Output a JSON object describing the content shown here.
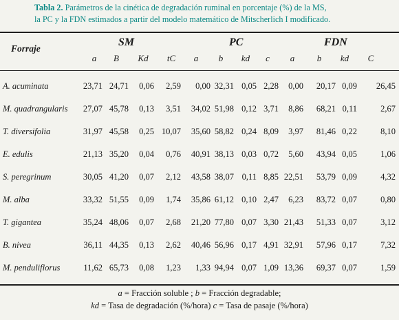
{
  "caption": {
    "label": "Tabla 2.",
    "text_line1": " Parámetros de la cinética de degradación ruminal en porcentaje (%) de la MS,",
    "text_line2": "la PC y la FDN estimados a partir del modelo matemático de Mitscherlich I modificado."
  },
  "header": {
    "forraje": "Forraje",
    "groups": [
      "SM",
      "PC",
      "FDN"
    ],
    "columns": [
      "a",
      "B",
      "Kd",
      "tC",
      "a",
      "b",
      "kd",
      "c",
      "a",
      "b",
      "kd",
      "C"
    ]
  },
  "rows": [
    {
      "name": "A. acuminata",
      "values": [
        "23,71",
        "24,71",
        "0,06",
        "2,59",
        "0,00",
        "32,31",
        "0,05",
        "2,28",
        "0,00",
        "20,17",
        "0,09",
        "26,45"
      ]
    },
    {
      "name": "M. quadrangularis",
      "values": [
        "27,07",
        "45,78",
        "0,13",
        "3,51",
        "34,02",
        "51,98",
        "0,12",
        "3,71",
        "8,86",
        "68,21",
        "0,11",
        "2,67"
      ]
    },
    {
      "name": "T. diversifolia",
      "values": [
        "31,97",
        "45,58",
        "0,25",
        "10,07",
        "35,60",
        "58,82",
        "0,24",
        "8,09",
        "3,97",
        "81,46",
        "0,22",
        "8,10"
      ]
    },
    {
      "name": "E. edulis",
      "values": [
        "21,13",
        "35,20",
        "0,04",
        "0,76",
        "40,91",
        "38,13",
        "0,03",
        "0,72",
        "5,60",
        "43,94",
        "0,05",
        "1,06"
      ]
    },
    {
      "name": "S. peregrinum",
      "values": [
        "30,05",
        "41,20",
        "0,07",
        "2,12",
        "43,58",
        "38,07",
        "0,11",
        "8,85",
        "22,51",
        "53,79",
        "0,09",
        "4,32"
      ]
    },
    {
      "name": "M. alba",
      "values": [
        "33,32",
        "51,55",
        "0,09",
        "1,74",
        "35,86",
        "61,12",
        "0,10",
        "2,47",
        "6,23",
        "83,72",
        "0,07",
        "0,80"
      ]
    },
    {
      "name": "T. gigantea",
      "values": [
        "35,24",
        "48,06",
        "0,07",
        "2,68",
        "21,20",
        "77,80",
        "0,07",
        "3,30",
        "21,43",
        "51,33",
        "0,07",
        "3,12"
      ]
    },
    {
      "name": "B. nivea",
      "values": [
        "36,11",
        "44,35",
        "0,13",
        "2,62",
        "40,46",
        "56,96",
        "0,17",
        "4,91",
        "32,91",
        "57,96",
        "0,17",
        "7,32"
      ]
    },
    {
      "name": "M. penduliflorus",
      "values": [
        "11,62",
        "65,73",
        "0,08",
        "1,23",
        "1,33",
        "94,94",
        "0,07",
        "1,09",
        "13,36",
        "69,37",
        "0,07",
        "1,59"
      ]
    }
  ],
  "legend": {
    "l1_sym1": "a",
    "l1_txt1": " = Fracción soluble ; ",
    "l1_sym2": "b",
    "l1_txt2": " = Fracción degradable;",
    "l2_sym1": "kd",
    "l2_txt1": " = Tasa de degradación (%/hora) ",
    "l2_sym2": "c",
    "l2_txt2": " = Tasa de pasaje (%/hora)"
  }
}
